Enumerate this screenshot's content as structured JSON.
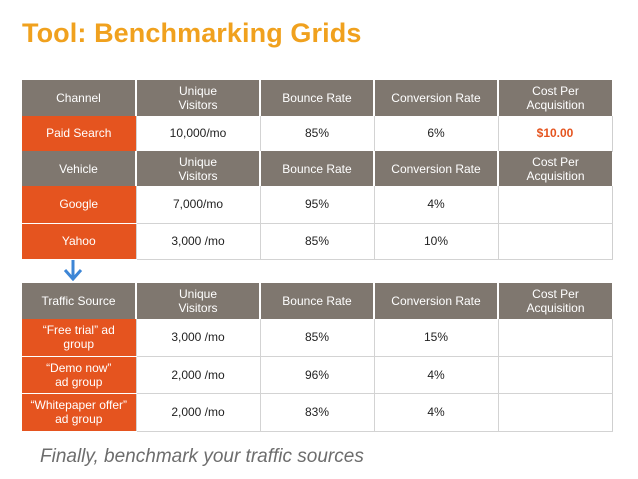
{
  "title": "Tool: Benchmarking Grids",
  "caption": "Finally, benchmark your traffic sources",
  "colors": {
    "title": "#f0a11e",
    "header": "#7f776f",
    "label": "#e5541f"
  },
  "grid1": {
    "headers": [
      "Channel",
      "Unique Visitors",
      "Bounce Rate",
      "Conversion Rate",
      "Cost Per Acquisition"
    ],
    "rows": [
      {
        "label": "Paid Search",
        "visitors": "10,000/mo",
        "bounce": "85%",
        "conversion": "6%",
        "cpa": "$10.00"
      }
    ]
  },
  "grid2": {
    "headers": [
      "Vehicle",
      "Unique Visitors",
      "Bounce Rate",
      "Conversion Rate",
      "Cost Per Acquisition"
    ],
    "rows": [
      {
        "label": "Google",
        "visitors": "7,000/mo",
        "bounce": "95%",
        "conversion": "4%",
        "cpa": ""
      },
      {
        "label": "Yahoo",
        "visitors": "3,000 /mo",
        "bounce": "85%",
        "conversion": "10%",
        "cpa": ""
      }
    ]
  },
  "grid3": {
    "headers": [
      "Traffic Source",
      "Unique Visitors",
      "Bounce Rate",
      "Conversion Rate",
      "Cost Per Acquisition"
    ],
    "rows": [
      {
        "label": "“Free trial” ad group",
        "visitors": "3,000 /mo",
        "bounce": "85%",
        "conversion": "15%",
        "cpa": ""
      },
      {
        "label": "“Demo now” ad group",
        "visitors": "2,000 /mo",
        "bounce": "96%",
        "conversion": "4%",
        "cpa": ""
      },
      {
        "label": "“Whitepaper offer” ad group",
        "visitors": "2,000 /mo",
        "bounce": "83%",
        "conversion": "4%",
        "cpa": ""
      }
    ]
  }
}
